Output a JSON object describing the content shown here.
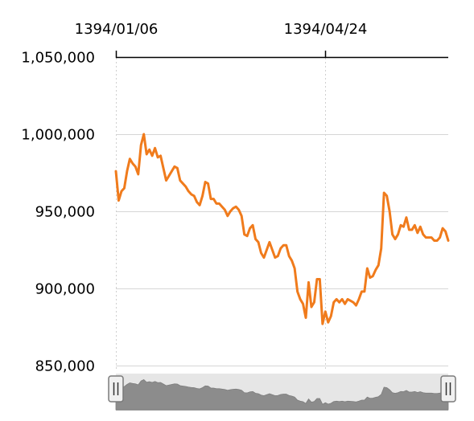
{
  "chart_data": {
    "type": "line",
    "title": "",
    "xlabel": "",
    "ylabel": "",
    "ylim": [
      850000,
      1050000
    ],
    "y_ticks": [
      850000,
      900000,
      950000,
      1000000,
      1050000
    ],
    "y_tick_labels": [
      "850,000",
      "900,000",
      "950,000",
      "1,000,000",
      "1,050,000"
    ],
    "x_ticks": [
      {
        "index": 0,
        "label": "1394/01/06"
      },
      {
        "index": 75,
        "label": "1394/04/24"
      }
    ],
    "grid": true,
    "legend": "none",
    "navigator": true,
    "series": [
      {
        "color": "#f07b1c",
        "values": [
          976000,
          957000,
          963000,
          965000,
          976000,
          984000,
          981000,
          979000,
          974000,
          993000,
          1000000,
          987000,
          990000,
          986000,
          991000,
          985000,
          986000,
          978000,
          970000,
          973000,
          976000,
          979000,
          978000,
          970000,
          968000,
          966000,
          963000,
          961000,
          960000,
          956000,
          954000,
          960000,
          969000,
          968000,
          958000,
          958000,
          955000,
          955000,
          953000,
          951000,
          947000,
          950000,
          952000,
          953000,
          951000,
          947000,
          935000,
          934000,
          939000,
          941000,
          932000,
          930000,
          923000,
          920000,
          925000,
          930000,
          925000,
          920000,
          921000,
          926000,
          928000,
          928000,
          921000,
          918000,
          913000,
          898000,
          893000,
          890000,
          881000,
          904000,
          888000,
          891000,
          906000,
          906000,
          877000,
          885000,
          878000,
          882000,
          891000,
          893000,
          891000,
          893000,
          890000,
          893000,
          892000,
          891000,
          889000,
          893000,
          898000,
          898000,
          913000,
          907000,
          908000,
          912000,
          915000,
          926000,
          962000,
          960000,
          950000,
          935000,
          932000,
          935000,
          941000,
          940000,
          946000,
          938000,
          938000,
          941000,
          936000,
          940000,
          935000,
          933000,
          933000,
          933000,
          931000,
          931000,
          933000,
          939000,
          937000,
          931000
        ]
      }
    ]
  },
  "colors": {
    "line": "#f07b1c",
    "navigator_fill": "#8c8c8c",
    "navigator_bg": "#e6e6e6",
    "handle_fill": "#f0f0f0",
    "handle_stroke": "#7a7a7a"
  }
}
